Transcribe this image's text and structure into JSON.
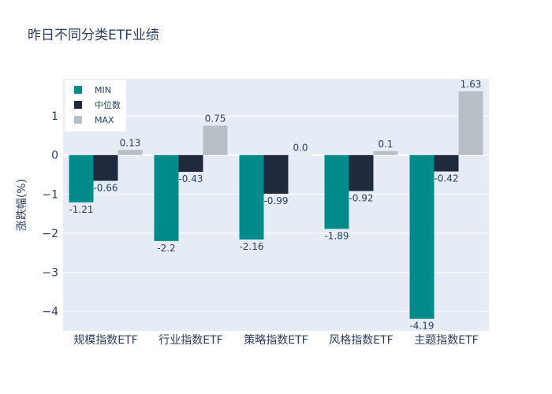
{
  "chart_data": {
    "type": "bar",
    "title": "昨日不同分类ETF业绩",
    "xlabel": "",
    "ylabel": "涨跌幅(%)",
    "categories": [
      "规模指数ETF",
      "行业指数ETF",
      "策略指数ETF",
      "风格指数ETF",
      "主题指数ETF"
    ],
    "series": [
      {
        "name": "MIN",
        "color": "#008b8b",
        "values": [
          -1.21,
          -2.2,
          -2.16,
          -1.89,
          -4.19
        ],
        "labels": [
          "-1.21",
          "-2.2",
          "-2.16",
          "-1.89",
          "-4.19"
        ]
      },
      {
        "name": "中位数",
        "color": "#1f2a3c",
        "values": [
          -0.66,
          -0.43,
          -0.99,
          -0.92,
          -0.42
        ],
        "labels": [
          "-0.66",
          "-0.43",
          "-0.99",
          "-0.92",
          "-0.42"
        ]
      },
      {
        "name": "MAX",
        "color": "#b8bec6",
        "values": [
          0.13,
          0.75,
          0.0,
          0.1,
          1.63
        ],
        "labels": [
          "0.13",
          "0.75",
          "0.0",
          "0.1",
          "1.63"
        ]
      }
    ],
    "ylim": [
      -4.5,
      1.95
    ],
    "yticks": [
      -4,
      -3,
      -2,
      -1,
      0,
      1
    ],
    "ytick_labels": [
      "−4",
      "−3",
      "−2",
      "−1",
      "0",
      "1"
    ],
    "grid": true,
    "legend_position": "top-left",
    "plot_bgcolor": "#e5ecf6"
  }
}
